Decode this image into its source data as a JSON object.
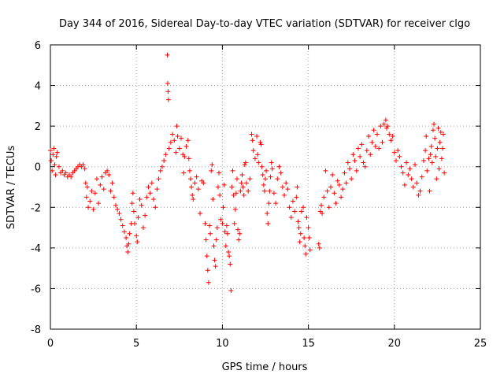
{
  "chart_data": {
    "type": "scatter",
    "title": "Day 344 of 2016, Sidereal Day-to-day VTEC variation (SDTVAR) for receiver clgo",
    "xlabel": "GPS time / hours",
    "ylabel": "SDTVAR / TECUs",
    "xlim": [
      0,
      25
    ],
    "ylim": [
      -8,
      6
    ],
    "xticks": [
      0,
      5,
      10,
      15,
      20,
      25
    ],
    "yticks": [
      -8,
      -6,
      -4,
      -2,
      0,
      2,
      4,
      6
    ],
    "grid": true,
    "marker": "+",
    "marker_color": "#ff0000",
    "series": [
      {
        "name": "SDTVAR",
        "points": [
          [
            0.0,
            0.8
          ],
          [
            0.05,
            0.3
          ],
          [
            0.1,
            -0.2
          ],
          [
            0.15,
            0.6
          ],
          [
            0.2,
            0.9
          ],
          [
            0.25,
            0.1
          ],
          [
            0.3,
            -0.4
          ],
          [
            0.35,
            0.5
          ],
          [
            0.4,
            0.7
          ],
          [
            0.5,
            0.0
          ],
          [
            0.6,
            -0.3
          ],
          [
            0.7,
            -0.2
          ],
          [
            0.8,
            -0.4
          ],
          [
            0.9,
            -0.3
          ],
          [
            1.0,
            -0.5
          ],
          [
            1.1,
            -0.4
          ],
          [
            1.2,
            -0.5
          ],
          [
            1.3,
            -0.3
          ],
          [
            1.4,
            -0.2
          ],
          [
            1.5,
            -0.1
          ],
          [
            1.6,
            0.0
          ],
          [
            1.7,
            0.1
          ],
          [
            1.8,
            0.0
          ],
          [
            1.9,
            0.1
          ],
          [
            2.0,
            -0.1
          ],
          [
            2.05,
            -0.8
          ],
          [
            2.1,
            -1.5
          ],
          [
            2.15,
            -1.0
          ],
          [
            2.2,
            -2.0
          ],
          [
            2.3,
            -1.7
          ],
          [
            2.4,
            -1.2
          ],
          [
            2.5,
            -2.1
          ],
          [
            2.6,
            -1.3
          ],
          [
            2.7,
            -0.6
          ],
          [
            2.8,
            -1.8
          ],
          [
            2.9,
            -0.9
          ],
          [
            3.0,
            -0.5
          ],
          [
            3.1,
            -1.1
          ],
          [
            3.2,
            -0.3
          ],
          [
            3.3,
            -0.2
          ],
          [
            3.4,
            -0.4
          ],
          [
            3.5,
            -1.2
          ],
          [
            3.6,
            -0.8
          ],
          [
            3.7,
            -1.5
          ],
          [
            3.8,
            -1.9
          ],
          [
            3.9,
            -2.1
          ],
          [
            4.0,
            -2.3
          ],
          [
            4.1,
            -2.6
          ],
          [
            4.2,
            -2.9
          ],
          [
            4.3,
            -3.2
          ],
          [
            4.4,
            -3.5
          ],
          [
            4.45,
            -3.9
          ],
          [
            4.5,
            -4.2
          ],
          [
            4.55,
            -3.8
          ],
          [
            4.6,
            -3.3
          ],
          [
            4.7,
            -2.8
          ],
          [
            4.75,
            -1.8
          ],
          [
            4.8,
            -1.3
          ],
          [
            4.85,
            -2.2
          ],
          [
            4.9,
            -2.8
          ],
          [
            5.0,
            -3.4
          ],
          [
            5.05,
            -3.7
          ],
          [
            5.1,
            -2.5
          ],
          [
            5.2,
            -1.6
          ],
          [
            5.3,
            -1.9
          ],
          [
            5.4,
            -3.0
          ],
          [
            5.5,
            -2.4
          ],
          [
            5.6,
            -1.5
          ],
          [
            5.7,
            -1.0
          ],
          [
            5.8,
            -1.3
          ],
          [
            5.9,
            -0.8
          ],
          [
            6.0,
            -1.6
          ],
          [
            6.1,
            -2.0
          ],
          [
            6.2,
            -1.1
          ],
          [
            6.3,
            -0.6
          ],
          [
            6.4,
            -0.2
          ],
          [
            6.5,
            0.0
          ],
          [
            6.6,
            0.3
          ],
          [
            6.7,
            0.6
          ],
          [
            6.8,
            5.5
          ],
          [
            6.82,
            4.1
          ],
          [
            6.84,
            3.7
          ],
          [
            6.86,
            3.3
          ],
          [
            6.9,
            0.9
          ],
          [
            7.0,
            1.2
          ],
          [
            7.1,
            1.6
          ],
          [
            7.2,
            1.3
          ],
          [
            7.3,
            0.7
          ],
          [
            7.35,
            2.0
          ],
          [
            7.4,
            1.5
          ],
          [
            7.5,
            0.9
          ],
          [
            7.6,
            1.4
          ],
          [
            7.7,
            0.6
          ],
          [
            7.75,
            -0.3
          ],
          [
            7.8,
            0.5
          ],
          [
            7.9,
            1.0
          ],
          [
            8.0,
            1.3
          ],
          [
            8.05,
            0.4
          ],
          [
            8.1,
            -0.2
          ],
          [
            8.15,
            -0.6
          ],
          [
            8.2,
            -1.0
          ],
          [
            8.25,
            -1.4
          ],
          [
            8.3,
            -1.6
          ],
          [
            8.4,
            -0.8
          ],
          [
            8.5,
            -0.5
          ],
          [
            8.6,
            -1.1
          ],
          [
            8.7,
            -2.3
          ],
          [
            8.8,
            -0.7
          ],
          [
            8.9,
            -0.8
          ],
          [
            9.0,
            -2.8
          ],
          [
            9.05,
            -3.6
          ],
          [
            9.1,
            -4.4
          ],
          [
            9.15,
            -5.1
          ],
          [
            9.2,
            -5.7
          ],
          [
            9.25,
            -2.9
          ],
          [
            9.3,
            -3.3
          ],
          [
            9.35,
            -0.2
          ],
          [
            9.4,
            0.1
          ],
          [
            9.45,
            -1.6
          ],
          [
            9.5,
            -3.9
          ],
          [
            9.55,
            -4.6
          ],
          [
            9.6,
            -4.9
          ],
          [
            9.65,
            -3.6
          ],
          [
            9.7,
            -3.0
          ],
          [
            9.75,
            -1.0
          ],
          [
            9.8,
            -0.3
          ],
          [
            9.85,
            -1.4
          ],
          [
            9.9,
            -2.6
          ],
          [
            10.0,
            -2.8
          ],
          [
            10.05,
            -2.0
          ],
          [
            10.1,
            -0.9
          ],
          [
            10.15,
            -3.2
          ],
          [
            10.2,
            -3.9
          ],
          [
            10.25,
            -2.9
          ],
          [
            10.3,
            -3.3
          ],
          [
            10.35,
            -4.2
          ],
          [
            10.4,
            -4.4
          ],
          [
            10.45,
            -4.8
          ],
          [
            10.5,
            -6.1
          ],
          [
            10.55,
            -1.0
          ],
          [
            10.6,
            -0.2
          ],
          [
            10.65,
            -1.4
          ],
          [
            10.7,
            -2.8
          ],
          [
            10.75,
            -2.1
          ],
          [
            10.8,
            -1.3
          ],
          [
            10.85,
            -0.6
          ],
          [
            10.9,
            -3.1
          ],
          [
            10.95,
            -3.6
          ],
          [
            11.0,
            -3.3
          ],
          [
            11.05,
            -1.2
          ],
          [
            11.1,
            -0.8
          ],
          [
            11.15,
            -0.4
          ],
          [
            11.2,
            -1.0
          ],
          [
            11.25,
            -1.4
          ],
          [
            11.3,
            0.1
          ],
          [
            11.35,
            0.2
          ],
          [
            11.4,
            -0.8
          ],
          [
            11.5,
            -1.2
          ],
          [
            11.6,
            -0.6
          ],
          [
            11.7,
            1.6
          ],
          [
            11.75,
            1.3
          ],
          [
            11.8,
            0.8
          ],
          [
            11.9,
            0.4
          ],
          [
            12.0,
            1.5
          ],
          [
            12.05,
            0.6
          ],
          [
            12.1,
            0.2
          ],
          [
            12.2,
            1.2
          ],
          [
            12.25,
            1.1
          ],
          [
            12.3,
            0.0
          ],
          [
            12.35,
            -0.4
          ],
          [
            12.4,
            -0.9
          ],
          [
            12.45,
            -1.2
          ],
          [
            12.5,
            -0.6
          ],
          [
            12.55,
            -0.2
          ],
          [
            12.6,
            -2.3
          ],
          [
            12.65,
            -2.8
          ],
          [
            12.7,
            -1.8
          ],
          [
            12.75,
            -1.2
          ],
          [
            12.8,
            -0.5
          ],
          [
            12.85,
            0.2
          ],
          [
            12.9,
            -0.1
          ],
          [
            13.0,
            -1.3
          ],
          [
            13.1,
            -1.8
          ],
          [
            13.2,
            -0.6
          ],
          [
            13.3,
            0.0
          ],
          [
            13.4,
            -0.3
          ],
          [
            13.5,
            -1.0
          ],
          [
            13.6,
            -1.4
          ],
          [
            13.7,
            -0.8
          ],
          [
            13.8,
            -1.1
          ],
          [
            13.9,
            -2.0
          ],
          [
            14.0,
            -2.5
          ],
          [
            14.1,
            -1.7
          ],
          [
            14.2,
            -2.2
          ],
          [
            14.3,
            -1.5
          ],
          [
            14.35,
            -1.0
          ],
          [
            14.4,
            -2.7
          ],
          [
            14.45,
            -3.0
          ],
          [
            14.5,
            -3.7
          ],
          [
            14.55,
            -3.3
          ],
          [
            14.6,
            -2.2
          ],
          [
            14.7,
            -2.0
          ],
          [
            14.75,
            -3.5
          ],
          [
            14.8,
            -3.9
          ],
          [
            14.85,
            -4.3
          ],
          [
            14.9,
            -2.5
          ],
          [
            15.0,
            -3.0
          ],
          [
            15.05,
            -3.5
          ],
          [
            15.1,
            -4.1
          ],
          [
            15.6,
            -3.8
          ],
          [
            15.65,
            -4.0
          ],
          [
            15.7,
            -2.2
          ],
          [
            15.75,
            -1.9
          ],
          [
            15.8,
            -2.3
          ],
          [
            15.9,
            -1.5
          ],
          [
            16.0,
            -0.2
          ],
          [
            16.1,
            -1.2
          ],
          [
            16.2,
            -2.0
          ],
          [
            16.3,
            -1.0
          ],
          [
            16.4,
            -0.4
          ],
          [
            16.5,
            -1.3
          ],
          [
            16.6,
            -1.8
          ],
          [
            16.7,
            -0.7
          ],
          [
            16.8,
            -0.9
          ],
          [
            16.9,
            -1.5
          ],
          [
            17.0,
            -1.1
          ],
          [
            17.1,
            -0.3
          ],
          [
            17.2,
            -0.8
          ],
          [
            17.3,
            0.2
          ],
          [
            17.4,
            -0.1
          ],
          [
            17.5,
            -0.6
          ],
          [
            17.6,
            0.6
          ],
          [
            17.7,
            0.3
          ],
          [
            17.8,
            -0.2
          ],
          [
            17.9,
            0.9
          ],
          [
            18.0,
            0.5
          ],
          [
            18.1,
            1.1
          ],
          [
            18.2,
            0.2
          ],
          [
            18.3,
            0.0
          ],
          [
            18.4,
            0.8
          ],
          [
            18.5,
            1.5
          ],
          [
            18.6,
            0.6
          ],
          [
            18.7,
            1.2
          ],
          [
            18.8,
            1.8
          ],
          [
            18.9,
            1.0
          ],
          [
            19.0,
            1.6
          ],
          [
            19.1,
            0.9
          ],
          [
            19.2,
            2.0
          ],
          [
            19.3,
            1.2
          ],
          [
            19.4,
            2.1
          ],
          [
            19.5,
            2.3
          ],
          [
            19.55,
            1.9
          ],
          [
            19.6,
            2.0
          ],
          [
            19.7,
            1.6
          ],
          [
            19.8,
            1.3
          ],
          [
            19.9,
            1.5
          ],
          [
            20.0,
            0.7
          ],
          [
            20.1,
            0.3
          ],
          [
            20.2,
            0.8
          ],
          [
            20.3,
            0.5
          ],
          [
            20.4,
            0.0
          ],
          [
            20.5,
            -0.3
          ],
          [
            20.6,
            -0.9
          ],
          [
            20.7,
            0.2
          ],
          [
            20.8,
            -0.4
          ],
          [
            20.9,
            -0.1
          ],
          [
            21.0,
            -0.6
          ],
          [
            21.1,
            -1.0
          ],
          [
            21.2,
            0.1
          ],
          [
            21.3,
            -0.8
          ],
          [
            21.4,
            -1.4
          ],
          [
            21.5,
            -1.2
          ],
          [
            21.6,
            -0.5
          ],
          [
            21.7,
            0.3
          ],
          [
            21.8,
            0.8
          ],
          [
            21.85,
            1.5
          ],
          [
            21.9,
            -0.2
          ],
          [
            22.0,
            0.4
          ],
          [
            22.05,
            -1.2
          ],
          [
            22.1,
            0.6
          ],
          [
            22.15,
            1.0
          ],
          [
            22.2,
            0.2
          ],
          [
            22.25,
            1.8
          ],
          [
            22.3,
            2.1
          ],
          [
            22.35,
            1.4
          ],
          [
            22.4,
            0.5
          ],
          [
            22.45,
            -0.6
          ],
          [
            22.5,
            0.9
          ],
          [
            22.55,
            1.9
          ],
          [
            22.6,
            -0.1
          ],
          [
            22.65,
            1.2
          ],
          [
            22.7,
            1.7
          ],
          [
            22.75,
            0.4
          ],
          [
            22.8,
            0.9
          ],
          [
            22.85,
            1.6
          ],
          [
            22.9,
            -0.3
          ]
        ]
      }
    ]
  }
}
